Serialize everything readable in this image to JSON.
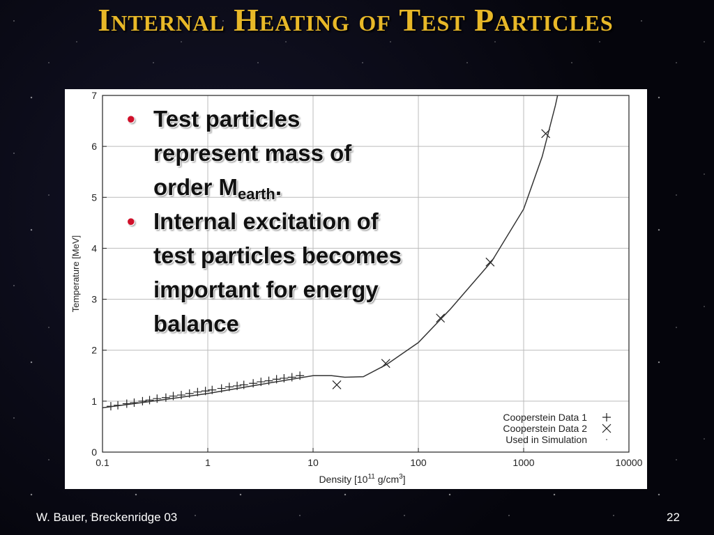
{
  "slide_title": "Internal Heating of Test Particles",
  "bullets": [
    {
      "parts": [
        "Test particles represent mass of order M",
        "earth",
        "."
      ]
    },
    {
      "parts": [
        "Internal excitation of test particles becomes important for energy balance"
      ]
    }
  ],
  "footer_left": "W. Bauer, Breckenridge 03",
  "page_number": "22",
  "chart_data": {
    "type": "scatter",
    "xlabel": {
      "parts": [
        "Density [10",
        "11",
        " g/cm",
        "3",
        "]"
      ]
    },
    "ylabel": "Temperature [MeV]",
    "xscale": "log",
    "xlim": [
      0.1,
      10000
    ],
    "ylim": [
      0,
      7
    ],
    "xticks": [
      0.1,
      1,
      10,
      100,
      1000,
      10000
    ],
    "yticks": [
      0,
      1,
      2,
      3,
      4,
      5,
      6,
      7
    ],
    "grid": true,
    "legend": "lower right",
    "series": [
      {
        "name": "Cooperstein Data 1",
        "marker": "plus",
        "color": "#222222",
        "x": [
          0.12,
          0.14,
          0.17,
          0.2,
          0.24,
          0.28,
          0.33,
          0.4,
          0.47,
          0.56,
          0.67,
          0.8,
          0.95,
          1.1,
          1.35,
          1.6,
          1.9,
          2.2,
          2.7,
          3.2,
          3.8,
          4.5,
          5.3,
          6.3,
          7.5
        ],
        "values": [
          0.9,
          0.92,
          0.95,
          0.97,
          1.0,
          1.02,
          1.05,
          1.07,
          1.1,
          1.12,
          1.15,
          1.18,
          1.2,
          1.22,
          1.25,
          1.28,
          1.3,
          1.32,
          1.35,
          1.38,
          1.4,
          1.43,
          1.45,
          1.47,
          1.5
        ]
      },
      {
        "name": "Cooperstein Data 2",
        "marker": "cross",
        "color": "#222222",
        "x": [
          16.8,
          49,
          162,
          480,
          1620
        ],
        "values": [
          1.32,
          1.74,
          2.63,
          3.73,
          6.25
        ]
      },
      {
        "name": "Used in Simulation",
        "marker": "line",
        "color": "#333333",
        "x": [
          0.1,
          0.3,
          1,
          3,
          10,
          15,
          20,
          30,
          50,
          100,
          200,
          500,
          1000,
          1500,
          2000,
          2100
        ],
        "values": [
          0.87,
          1.0,
          1.15,
          1.32,
          1.5,
          1.5,
          1.47,
          1.48,
          1.72,
          2.15,
          2.8,
          3.75,
          4.77,
          5.8,
          6.8,
          7.0
        ]
      }
    ]
  }
}
